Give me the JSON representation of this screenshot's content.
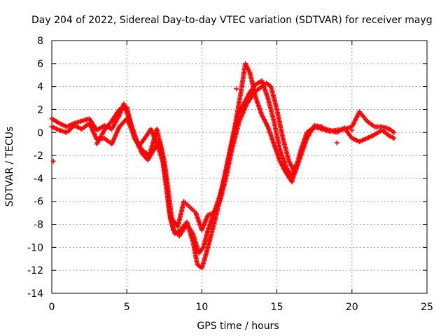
{
  "chart_data": {
    "type": "scatter",
    "title": "Day 204 of 2022, Sidereal Day-to-day VTEC variation (SDTVAR) for receiver mayg",
    "xlabel": "GPS time / hours",
    "ylabel": "SDTVAR / TECUs",
    "xlim": [
      0,
      25
    ],
    "ylim": [
      -14,
      8
    ],
    "xticks": [
      0,
      5,
      10,
      15,
      20,
      25
    ],
    "yticks": [
      -14,
      -12,
      -10,
      -8,
      -6,
      -4,
      -2,
      0,
      2,
      4,
      6,
      8
    ],
    "grid": true,
    "marker": "+",
    "series": [
      {
        "name": "SDTVAR",
        "color": "#ff0000",
        "traces": [
          {
            "x": [
              0.0,
              0.5,
              1.0,
              1.5,
              2.0,
              2.5,
              3.0,
              3.5,
              4.0,
              4.5,
              4.8,
              5.2,
              5.6,
              6.0,
              6.4,
              6.8,
              7.2,
              7.6,
              7.9,
              8.2,
              8.6,
              9.0,
              9.4,
              9.7,
              10.0,
              10.3,
              10.6,
              11.0,
              11.4,
              11.8,
              12.2,
              12.6,
              12.9,
              13.2,
              13.6,
              14.0,
              14.4,
              14.8,
              15.2,
              15.6,
              16.0,
              16.3,
              16.6,
              17.0,
              17.5,
              18.0,
              18.5,
              19.0,
              19.5,
              20.0,
              20.5,
              21.0,
              21.5,
              22.0,
              22.5,
              22.8
            ],
            "y": [
              1.2,
              0.8,
              0.5,
              0.8,
              1.0,
              1.2,
              0.2,
              0.6,
              0.3,
              1.5,
              2.5,
              1.0,
              -0.5,
              -1.8,
              -2.4,
              -1.5,
              -0.8,
              -4.0,
              -7.5,
              -8.8,
              -8.5,
              -7.8,
              -9.5,
              -11.5,
              -11.8,
              -10.5,
              -9.0,
              -7.0,
              -4.5,
              -2.0,
              0.5,
              3.5,
              6.0,
              5.2,
              3.0,
              1.5,
              0.5,
              -1.0,
              -2.5,
              -3.5,
              -4.3,
              -3.0,
              -1.5,
              0.0,
              0.5,
              0.3,
              0.1,
              0.2,
              0.3,
              0.5,
              1.8,
              1.0,
              0.5,
              0.5,
              0.3,
              0.0
            ]
          },
          {
            "x": [
              0.0,
              0.5,
              1.0,
              1.5,
              2.0,
              2.5,
              3.0,
              3.5,
              4.0,
              4.5,
              5.0,
              5.4,
              5.8,
              6.2,
              6.6,
              7.0,
              7.4,
              7.8,
              8.1,
              8.5,
              9.0,
              9.4,
              9.8,
              10.1,
              10.4,
              10.8,
              11.2,
              11.6,
              12.0,
              12.4,
              12.8,
              13.2,
              13.6,
              14.0,
              14.4,
              14.8,
              15.2,
              15.6,
              16.0,
              16.4,
              16.8,
              17.2,
              17.6,
              18.0,
              18.5,
              19.0,
              19.5,
              20.0,
              20.5,
              21.0,
              21.5,
              22.0,
              22.5,
              22.8
            ],
            "y": [
              0.5,
              0.2,
              0.0,
              0.6,
              0.3,
              0.8,
              -0.6,
              -0.5,
              -1.0,
              0.5,
              1.2,
              0.0,
              -1.2,
              -0.5,
              0.3,
              -1.0,
              -2.5,
              -6.5,
              -8.5,
              -9.0,
              -8.0,
              -8.8,
              -10.5,
              -10.0,
              -8.5,
              -7.0,
              -5.5,
              -3.5,
              -1.0,
              1.5,
              2.5,
              3.5,
              4.2,
              4.5,
              3.0,
              1.0,
              -1.5,
              -3.0,
              -3.8,
              -2.5,
              -1.0,
              0.2,
              0.5,
              0.4,
              0.2,
              0.0,
              0.4,
              -0.5,
              -0.8,
              -0.5,
              -0.2,
              0.2,
              -0.3,
              -0.5
            ]
          },
          {
            "x": [
              3.0,
              3.5,
              4.0,
              4.5,
              5.0,
              5.5,
              6.0,
              6.5,
              7.0,
              7.5,
              8.0,
              8.4,
              8.8,
              9.2,
              9.6,
              10.0,
              10.4,
              10.8,
              11.2,
              11.6,
              12.0,
              12.5,
              13.0,
              13.5,
              14.0,
              14.3,
              14.6,
              15.0,
              15.4,
              15.8,
              16.2,
              16.6,
              17.0,
              17.5,
              18.0
            ],
            "y": [
              -1.0,
              0.2,
              1.0,
              2.0,
              2.2,
              -0.5,
              -1.5,
              -2.0,
              0.3,
              -2.5,
              -7.5,
              -8.2,
              -6.0,
              -6.5,
              -7.0,
              -8.5,
              -7.2,
              -7.0,
              -6.0,
              -4.0,
              -1.5,
              1.0,
              2.5,
              3.5,
              4.0,
              4.3,
              4.0,
              2.0,
              -0.5,
              -2.5,
              -3.5,
              -2.0,
              -0.5,
              0.6,
              0.5
            ]
          }
        ],
        "extra_points": [
          {
            "x": 0.1,
            "y": -2.5
          },
          {
            "x": 12.3,
            "y": 3.8
          },
          {
            "x": 19.0,
            "y": -0.9
          },
          {
            "x": 20.0,
            "y": 0.2
          }
        ]
      }
    ]
  }
}
